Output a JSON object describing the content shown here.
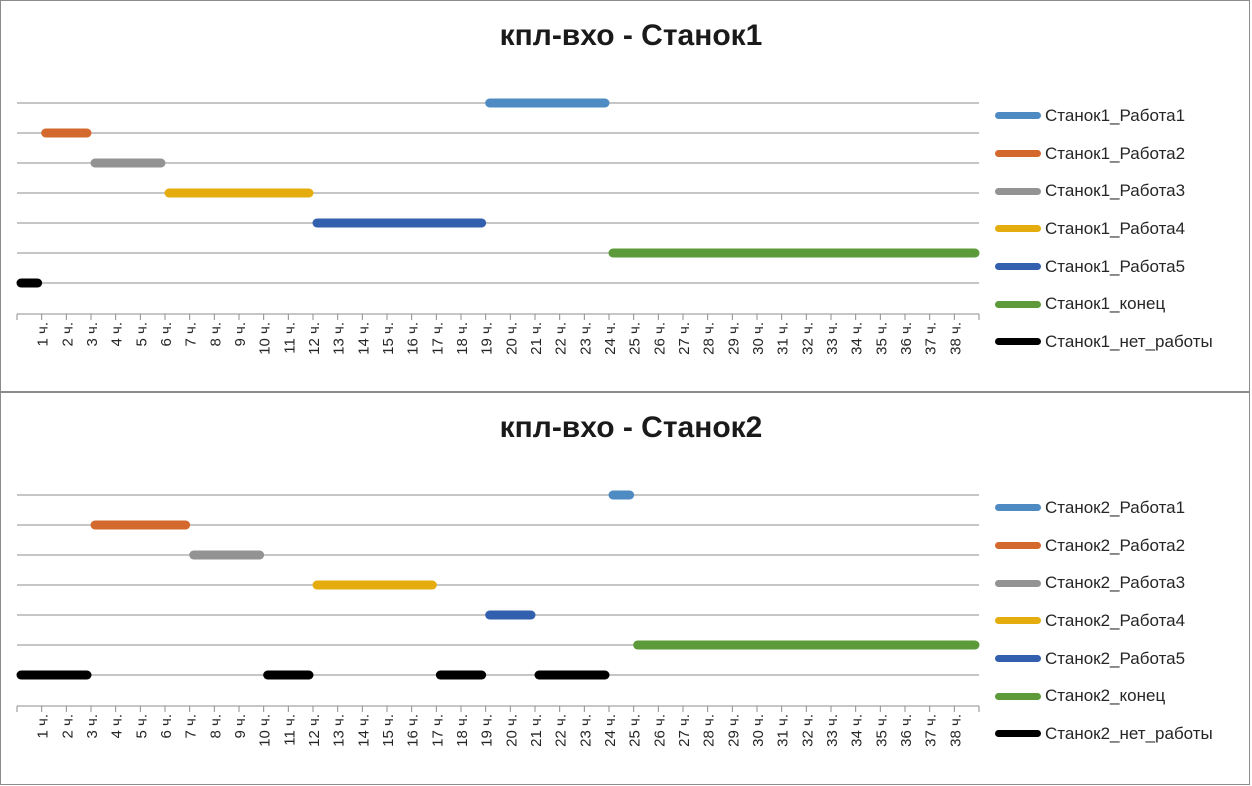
{
  "chart_data": [
    {
      "type": "gantt",
      "title": "кпл-вхо - Станок1",
      "tick_labels": [
        "1 ч.",
        "2 ч.",
        "3 ч.",
        "4 ч.",
        "5 ч.",
        "6 ч.",
        "7 ч.",
        "8 ч.",
        "9 ч.",
        "10 ч.",
        "11 ч.",
        "12 ч.",
        "13 ч.",
        "14 ч.",
        "15 ч.",
        "16 ч.",
        "17 ч.",
        "18 ч.",
        "19 ч.",
        "20 ч.",
        "21 ч.",
        "22 ч.",
        "23 ч.",
        "24 ч.",
        "25 ч.",
        "26 ч.",
        "27 ч.",
        "28 ч.",
        "29 ч.",
        "30 ч.",
        "31 ч.",
        "32 ч.",
        "33 ч.",
        "34 ч.",
        "35 ч.",
        "36 ч.",
        "37 ч.",
        "38 ч."
      ],
      "xlim": [
        0,
        39
      ],
      "legend_position": "right",
      "series": [
        {
          "name": "Станок1_Работа1",
          "color": "#4e8bc2",
          "intervals": [
            [
              19,
              24
            ]
          ]
        },
        {
          "name": "Станок1_Работа2",
          "color": "#d4692e",
          "intervals": [
            [
              1,
              3
            ]
          ]
        },
        {
          "name": "Станок1_Работа3",
          "color": "#939393",
          "intervals": [
            [
              3,
              6
            ]
          ]
        },
        {
          "name": "Станок1_Работа4",
          "color": "#e4ad0d",
          "intervals": [
            [
              6,
              12
            ]
          ]
        },
        {
          "name": "Станок1_Работа5",
          "color": "#3360ae",
          "intervals": [
            [
              12,
              19
            ]
          ]
        },
        {
          "name": "Станок1_конец",
          "color": "#5c9a3a",
          "intervals": [
            [
              24,
              39
            ]
          ]
        },
        {
          "name": "Станок1_нет_работы",
          "color": "#000000",
          "intervals": [
            [
              0,
              1
            ]
          ]
        }
      ]
    },
    {
      "type": "gantt",
      "title": "кпл-вхо - Станок2",
      "tick_labels": [
        "1 ч.",
        "2 ч.",
        "3 ч.",
        "4 ч.",
        "5 ч.",
        "6 ч.",
        "7 ч.",
        "8 ч.",
        "9 ч.",
        "10 ч.",
        "11 ч.",
        "12 ч.",
        "13 ч.",
        "14 ч.",
        "15 ч.",
        "16 ч.",
        "17 ч.",
        "18 ч.",
        "19 ч.",
        "20 ч.",
        "21 ч.",
        "22 ч.",
        "23 ч.",
        "24 ч.",
        "25 ч.",
        "26 ч.",
        "27 ч.",
        "28 ч.",
        "29 ч.",
        "30 ч.",
        "31 ч.",
        "32 ч.",
        "33 ч.",
        "34 ч.",
        "35 ч.",
        "36 ч.",
        "37 ч.",
        "38 ч."
      ],
      "xlim": [
        0,
        39
      ],
      "legend_position": "right",
      "series": [
        {
          "name": "Станок2_Работа1",
          "color": "#4e8bc2",
          "intervals": [
            [
              24,
              25
            ]
          ]
        },
        {
          "name": "Станок2_Работа2",
          "color": "#d4692e",
          "intervals": [
            [
              3,
              7
            ]
          ]
        },
        {
          "name": "Станок2_Работа3",
          "color": "#939393",
          "intervals": [
            [
              7,
              10
            ]
          ]
        },
        {
          "name": "Станок2_Работа4",
          "color": "#e4ad0d",
          "intervals": [
            [
              12,
              17
            ]
          ]
        },
        {
          "name": "Станок2_Работа5",
          "color": "#3360ae",
          "intervals": [
            [
              19,
              21
            ]
          ]
        },
        {
          "name": "Станок2_конец",
          "color": "#5c9a3a",
          "intervals": [
            [
              25,
              39
            ]
          ]
        },
        {
          "name": "Станок2_нет_работы",
          "color": "#000000",
          "intervals": [
            [
              0,
              3
            ],
            [
              10,
              12
            ],
            [
              17,
              19
            ],
            [
              21,
              24
            ]
          ]
        }
      ]
    }
  ]
}
